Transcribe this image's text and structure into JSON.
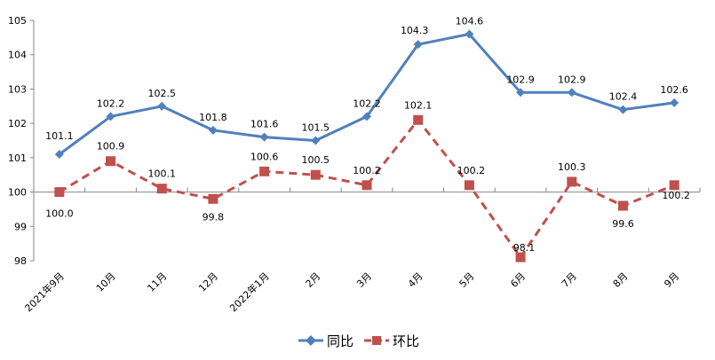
{
  "chart_data": {
    "type": "line",
    "title": "",
    "xlabel": "",
    "ylabel": "",
    "ylim": [
      98,
      105
    ],
    "yticks": [
      98,
      99,
      100,
      101,
      102,
      103,
      104,
      105
    ],
    "grid": false,
    "legend_position": "bottom",
    "categories": [
      "2021年9月",
      "10月",
      "11月",
      "12月",
      "2022年1月",
      "2月",
      "3月",
      "4月",
      "5月",
      "6月",
      "7月",
      "8月",
      "9月"
    ],
    "series": [
      {
        "name": "同比",
        "color": "#4F81BD",
        "marker": "diamond",
        "line_style": "solid",
        "values": [
          101.1,
          102.2,
          102.5,
          101.8,
          101.6,
          101.5,
          102.2,
          104.3,
          104.6,
          102.9,
          102.9,
          102.4,
          102.6
        ],
        "labels": [
          "101.1",
          "102.2",
          "102.5",
          "101.8",
          "101.6",
          "101.5",
          "102.2",
          "104.3",
          "104.6",
          "102.9",
          "102.9",
          "102.4",
          "102.6"
        ]
      },
      {
        "name": "环比",
        "color": "#C0504D",
        "marker": "square",
        "line_style": "dashed",
        "values": [
          100.0,
          100.9,
          100.1,
          99.8,
          100.6,
          100.5,
          100.2,
          102.1,
          100.2,
          98.1,
          100.3,
          99.6,
          100.2
        ],
        "labels": [
          "100.0",
          "100.9",
          "100.1",
          "99.8",
          "100.6",
          "100.5",
          "100.2",
          "102.1",
          "100.2",
          "98.1",
          "100.3",
          "99.6",
          "100.2"
        ]
      }
    ]
  },
  "legend": {
    "items": [
      {
        "label": "同比",
        "icon": "blue-diamond-line-icon"
      },
      {
        "label": "环比",
        "icon": "red-square-dashed-line-icon"
      }
    ]
  }
}
